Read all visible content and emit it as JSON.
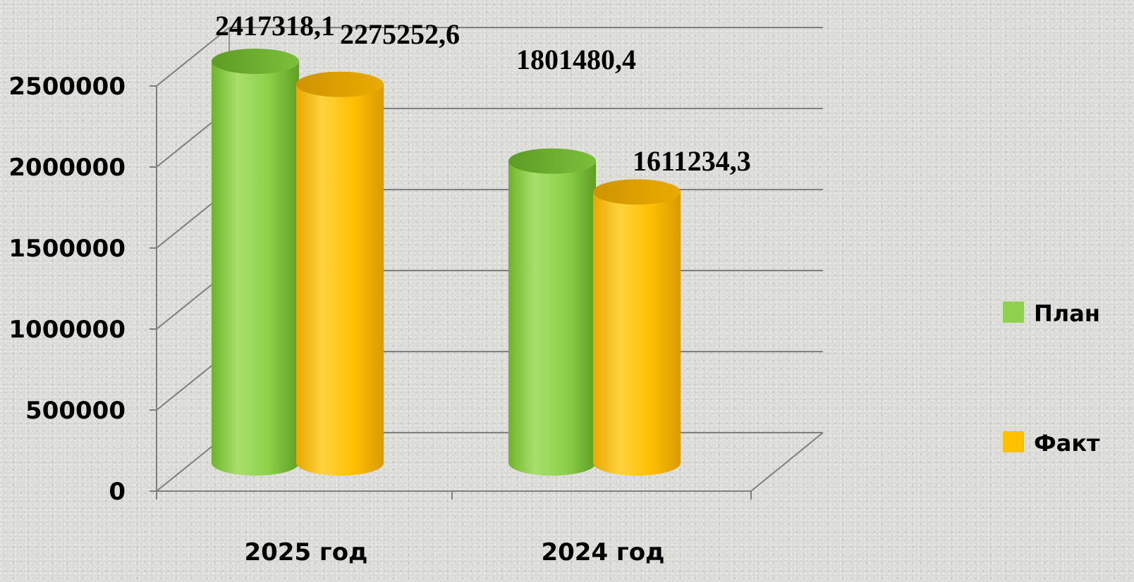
{
  "chart_data": {
    "type": "bar",
    "style": "3d-cylinder",
    "categories": [
      "2025 год",
      "2024 год"
    ],
    "series": [
      {
        "name": "План",
        "values": [
          2417318.1,
          1801480.4
        ],
        "labels": [
          "2417318,1",
          "1801480,4"
        ],
        "color": "#8fd14f"
      },
      {
        "name": "Факт",
        "values": [
          2275252.6,
          1611234.3
        ],
        "labels": [
          "2275252,6",
          "1611234,3"
        ],
        "color": "#ffc000"
      }
    ],
    "yticks": [
      "0",
      "500000",
      "1000000",
      "1500000",
      "2000000",
      "2500000"
    ],
    "ylim": [
      0,
      2500000
    ],
    "grid": true,
    "legend": "right"
  }
}
